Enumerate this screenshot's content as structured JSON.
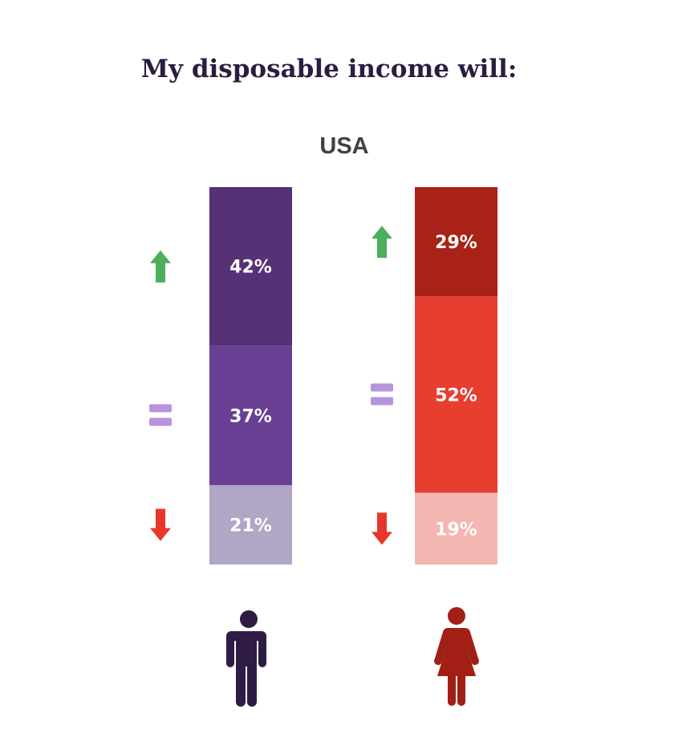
{
  "chart_data": {
    "type": "bar",
    "stacked": true,
    "title": "My disposable income will:",
    "subtitle": "USA",
    "categories": [
      "Men",
      "Women"
    ],
    "series": [
      {
        "values": [
          42,
          29
        ],
        "colors": [
          "#553175",
          "#a82217"
        ],
        "icon": "arrow-up-icon"
      },
      {
        "values": [
          37,
          52
        ],
        "colors": [
          "#693f93",
          "#e83e30"
        ],
        "icon": "equals-icon"
      },
      {
        "values": [
          21,
          19
        ],
        "colors": [
          "#b1a6c6",
          "#f3b6b0"
        ],
        "icon": "arrow-down-icon"
      }
    ],
    "value_labels": [
      [
        "42%",
        "29%"
      ],
      [
        "37%",
        "52%"
      ],
      [
        "21%",
        "19%"
      ]
    ],
    "ylim": [
      0,
      100
    ],
    "icon_colors": {
      "up": "#4caf5c",
      "equal": "#b695dc",
      "down": "#e8372a"
    },
    "figure_icons": [
      {
        "name": "man-icon",
        "color": "#2f1c45"
      },
      {
        "name": "woman-icon",
        "color": "#a21f15"
      }
    ]
  }
}
